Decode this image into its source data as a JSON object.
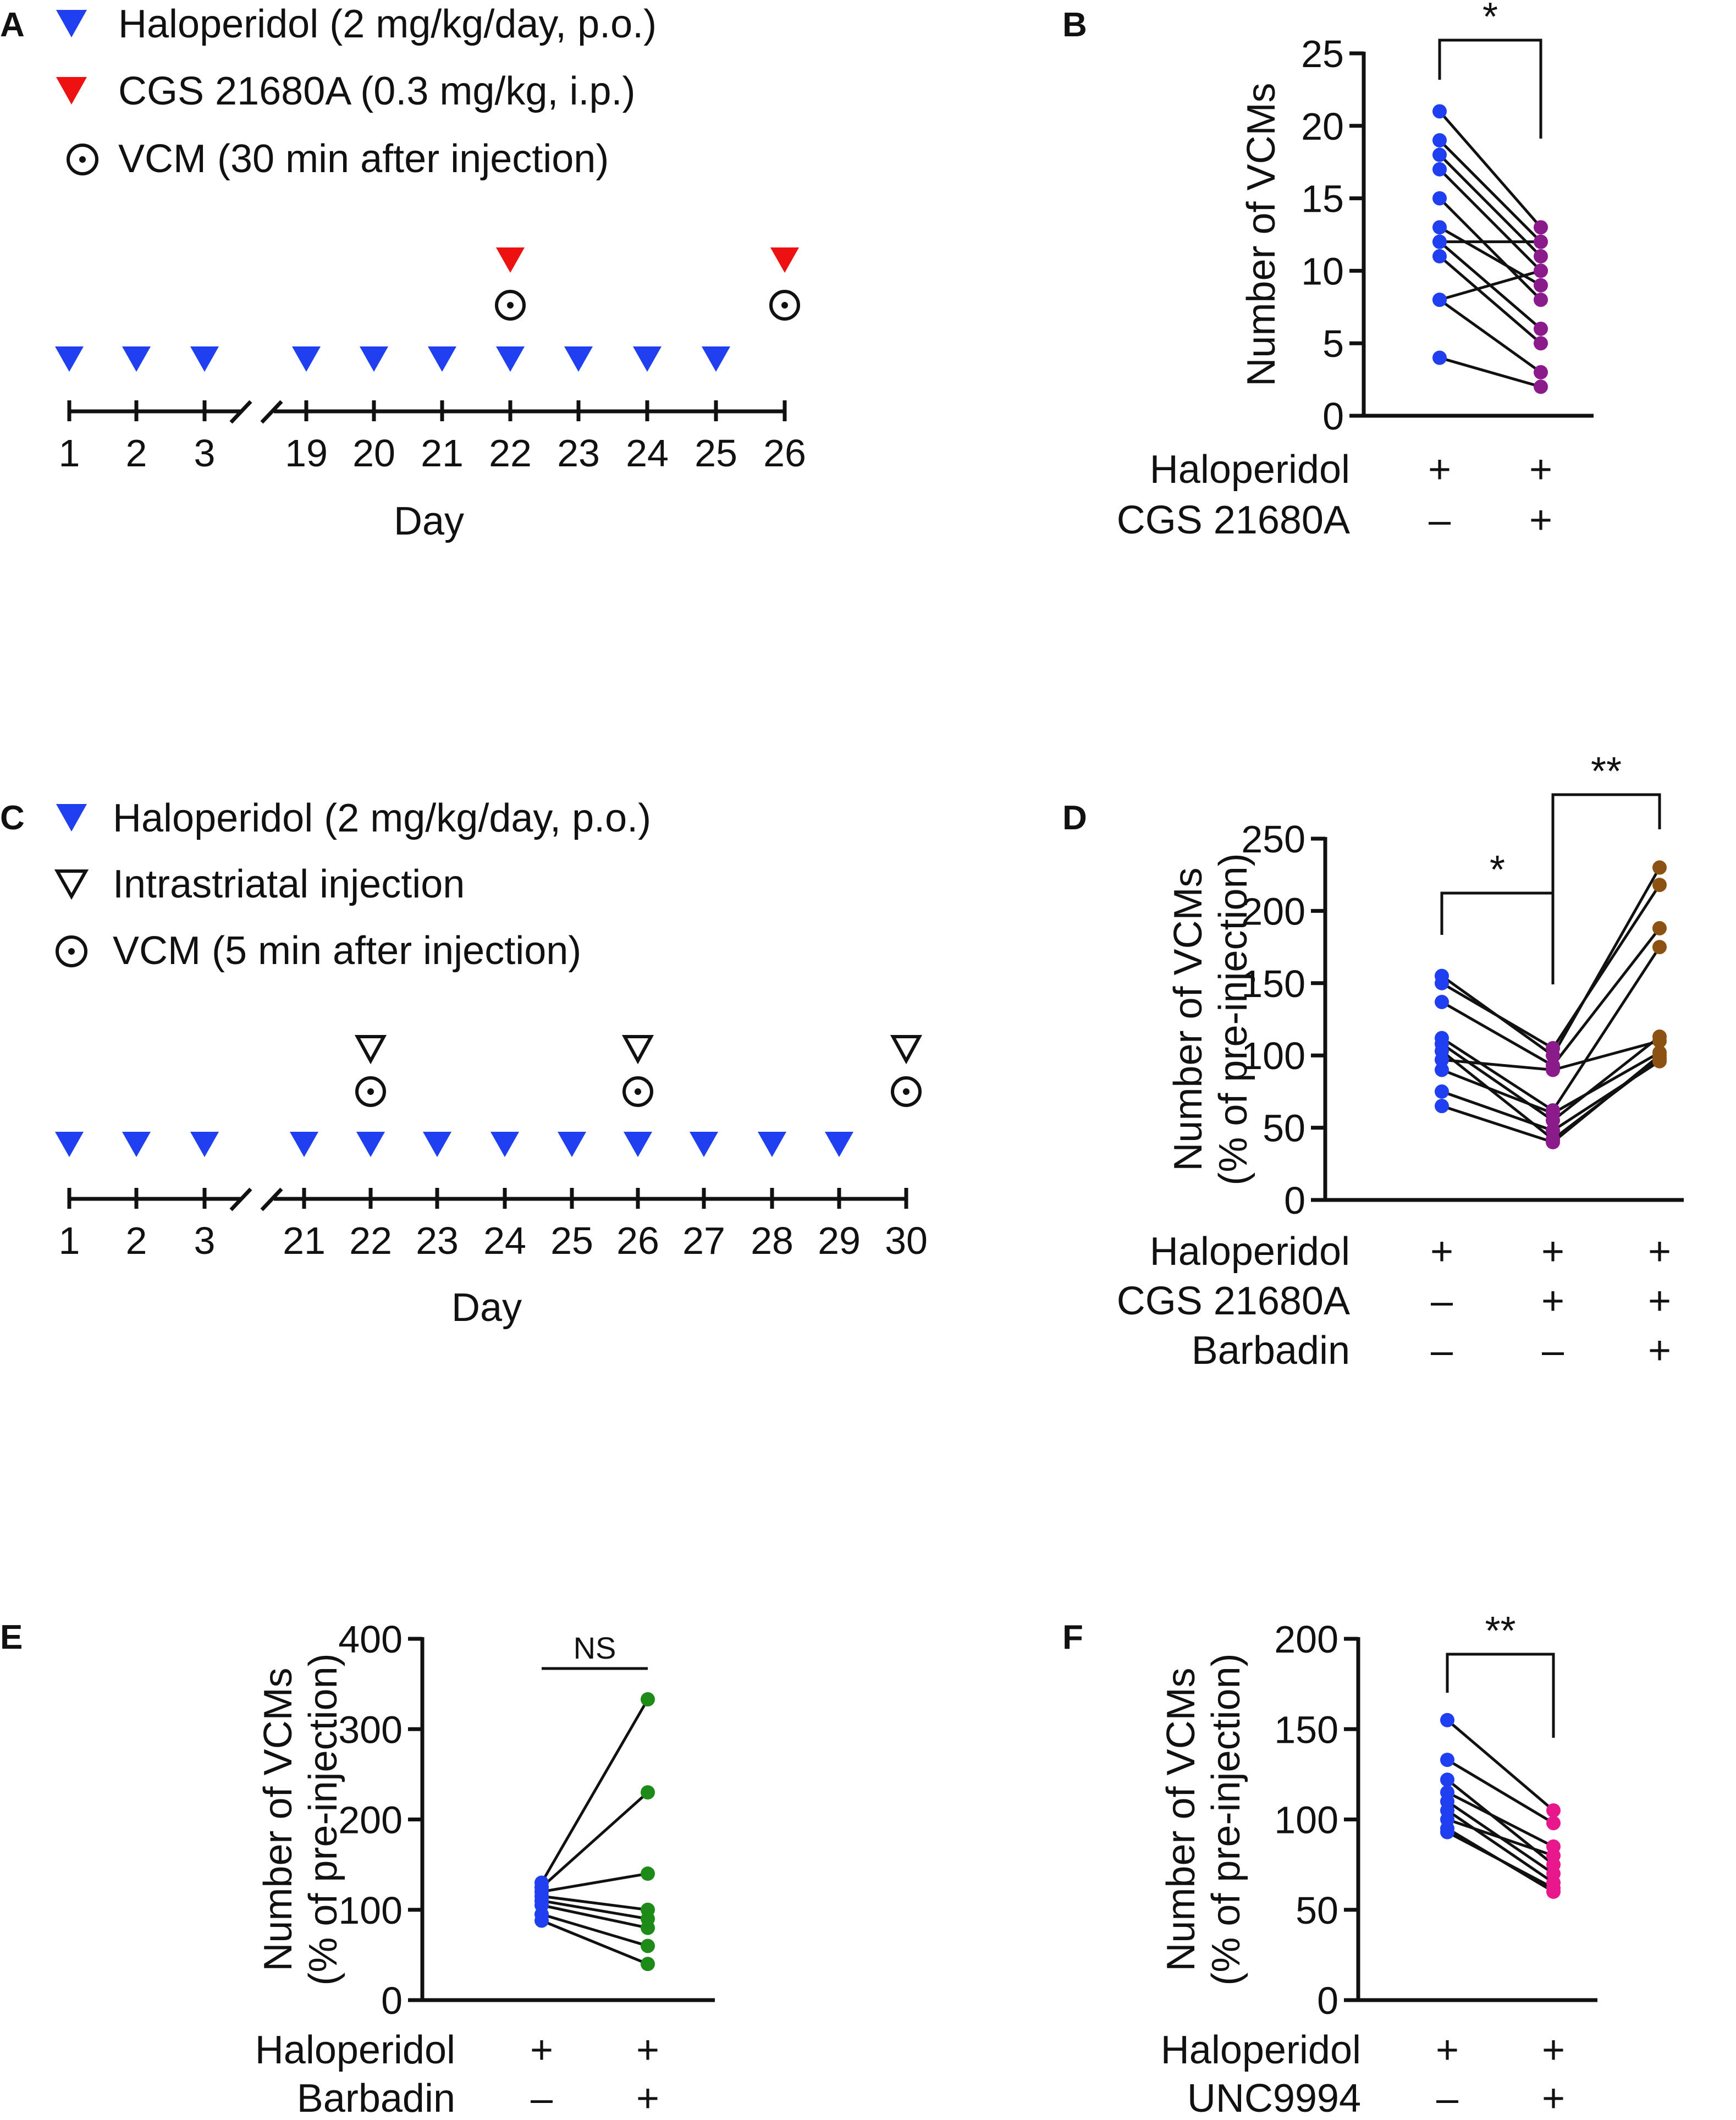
{
  "colors": {
    "blue": "#1f3ff0",
    "red": "#ee1111",
    "purple": "#8b1a8b",
    "brown": "#8b5213",
    "green": "#1e8a18",
    "pink": "#e8188c",
    "black": "#111111"
  },
  "panelA": {
    "letter": "A",
    "legend": [
      {
        "icon": "blue-triangle-icon",
        "label": "Haloperidol (2 mg/kg/day, p.o.)"
      },
      {
        "icon": "red-triangle-icon",
        "label": "CGS 21680A (0.3 mg/kg, i.p.)"
      },
      {
        "icon": "vcm-circle-dot-icon",
        "label": "VCM (30 min after injection)"
      }
    ],
    "days": [
      "1",
      "2",
      "3",
      "19",
      "20",
      "21",
      "22",
      "23",
      "24",
      "25",
      "26"
    ],
    "haloperidol_days": [
      "1",
      "2",
      "3",
      "19",
      "20",
      "21",
      "22",
      "23",
      "24",
      "25"
    ],
    "cgs_days": [
      "22",
      "26"
    ],
    "vcm_days": [
      "22",
      "26"
    ],
    "xlabel": "Day"
  },
  "panelC": {
    "letter": "C",
    "legend": [
      {
        "icon": "blue-triangle-icon",
        "label": "Haloperidol (2 mg/kg/day, p.o.)"
      },
      {
        "icon": "open-triangle-icon",
        "label": "Intrastriatal injection"
      },
      {
        "icon": "vcm-circle-dot-icon",
        "label": "VCM (5 min after injection)"
      }
    ],
    "days": [
      "1",
      "2",
      "3",
      "21",
      "22",
      "23",
      "24",
      "25",
      "26",
      "27",
      "28",
      "29",
      "30"
    ],
    "haloperidol_days": [
      "1",
      "2",
      "3",
      "21",
      "22",
      "23",
      "24",
      "25",
      "26",
      "27",
      "28",
      "29"
    ],
    "injection_days": [
      "22",
      "26",
      "30"
    ],
    "vcm_days": [
      "22",
      "26",
      "30"
    ],
    "xlabel": "Day"
  },
  "chart_data": [
    {
      "panel": "B",
      "type": "scatter",
      "subtype": "paired",
      "ylabel": "Number of VCMs",
      "ylim": [
        0,
        25
      ],
      "yticks": [
        0,
        5,
        10,
        15,
        20,
        25
      ],
      "groups": [
        "Haloperidol + / CGS 21680A –",
        "Haloperidol + / CGS 21680A +"
      ],
      "conditions": [
        {
          "name": "Haloperidol",
          "signs": [
            "+",
            "+"
          ]
        },
        {
          "name": "CGS 21680A",
          "signs": [
            "–",
            "+"
          ]
        }
      ],
      "point_colors": [
        "blue",
        "purple"
      ],
      "pairs": [
        [
          21,
          13
        ],
        [
          19,
          12
        ],
        [
          18,
          11
        ],
        [
          17,
          10
        ],
        [
          15,
          8
        ],
        [
          13,
          9
        ],
        [
          12,
          12
        ],
        [
          12,
          6
        ],
        [
          11,
          5
        ],
        [
          8,
          10
        ],
        [
          8,
          3
        ],
        [
          4,
          2
        ]
      ],
      "significance": [
        {
          "from": 0,
          "to": 1,
          "label": "*"
        }
      ]
    },
    {
      "panel": "D",
      "type": "scatter",
      "subtype": "paired",
      "ylabel": "Number of VCMs",
      "ylabel2": "(% of pre-injection)",
      "ylim": [
        0,
        250
      ],
      "yticks": [
        0,
        50,
        100,
        150,
        200,
        250
      ],
      "conditions": [
        {
          "name": "Haloperidol",
          "signs": [
            "+",
            "+",
            "+"
          ]
        },
        {
          "name": "CGS 21680A",
          "signs": [
            "–",
            "+",
            "+"
          ]
        },
        {
          "name": "Barbadin",
          "signs": [
            "–",
            "–",
            "+"
          ]
        }
      ],
      "point_colors": [
        "blue",
        "purple",
        "brown"
      ],
      "triples": [
        [
          155,
          100,
          230
        ],
        [
          150,
          105,
          218
        ],
        [
          137,
          93,
          188
        ],
        [
          112,
          62,
          175
        ],
        [
          108,
          55,
          113
        ],
        [
          103,
          42,
          98
        ],
        [
          97,
          90,
          110
        ],
        [
          90,
          60,
          102
        ],
        [
          75,
          48,
          96
        ],
        [
          65,
          40,
          100
        ]
      ],
      "significance": [
        {
          "from": 0,
          "to": 1,
          "label": "*"
        },
        {
          "from": 1,
          "to": 2,
          "label": "**"
        }
      ]
    },
    {
      "panel": "E",
      "type": "scatter",
      "subtype": "paired",
      "ylabel": "Number of VCMs",
      "ylabel2": "(% of pre-injection)",
      "ylim": [
        0,
        400
      ],
      "yticks": [
        0,
        100,
        200,
        300,
        400
      ],
      "conditions": [
        {
          "name": "Haloperidol",
          "signs": [
            "+",
            "+"
          ]
        },
        {
          "name": "Barbadin",
          "signs": [
            "–",
            "+"
          ]
        }
      ],
      "point_colors": [
        "blue",
        "green"
      ],
      "pairs": [
        [
          130,
          333
        ],
        [
          125,
          230
        ],
        [
          120,
          140
        ],
        [
          115,
          100
        ],
        [
          110,
          90
        ],
        [
          105,
          80
        ],
        [
          95,
          60
        ],
        [
          88,
          40
        ]
      ],
      "significance": [
        {
          "from": 0,
          "to": 1,
          "label": "NS"
        }
      ]
    },
    {
      "panel": "F",
      "type": "scatter",
      "subtype": "paired",
      "ylabel": "Number of VCMs",
      "ylabel2": "(% of pre-injection)",
      "ylim": [
        0,
        200
      ],
      "yticks": [
        0,
        50,
        100,
        150,
        200
      ],
      "conditions": [
        {
          "name": "Haloperidol",
          "signs": [
            "+",
            "+"
          ]
        },
        {
          "name": "UNC9994",
          "signs": [
            "–",
            "+"
          ]
        }
      ],
      "point_colors": [
        "blue",
        "pink"
      ],
      "pairs": [
        [
          155,
          105
        ],
        [
          133,
          98
        ],
        [
          122,
          75
        ],
        [
          115,
          85
        ],
        [
          110,
          70
        ],
        [
          105,
          65
        ],
        [
          100,
          80
        ],
        [
          95,
          60
        ],
        [
          93,
          62
        ]
      ],
      "significance": [
        {
          "from": 0,
          "to": 1,
          "label": "**"
        }
      ]
    }
  ]
}
